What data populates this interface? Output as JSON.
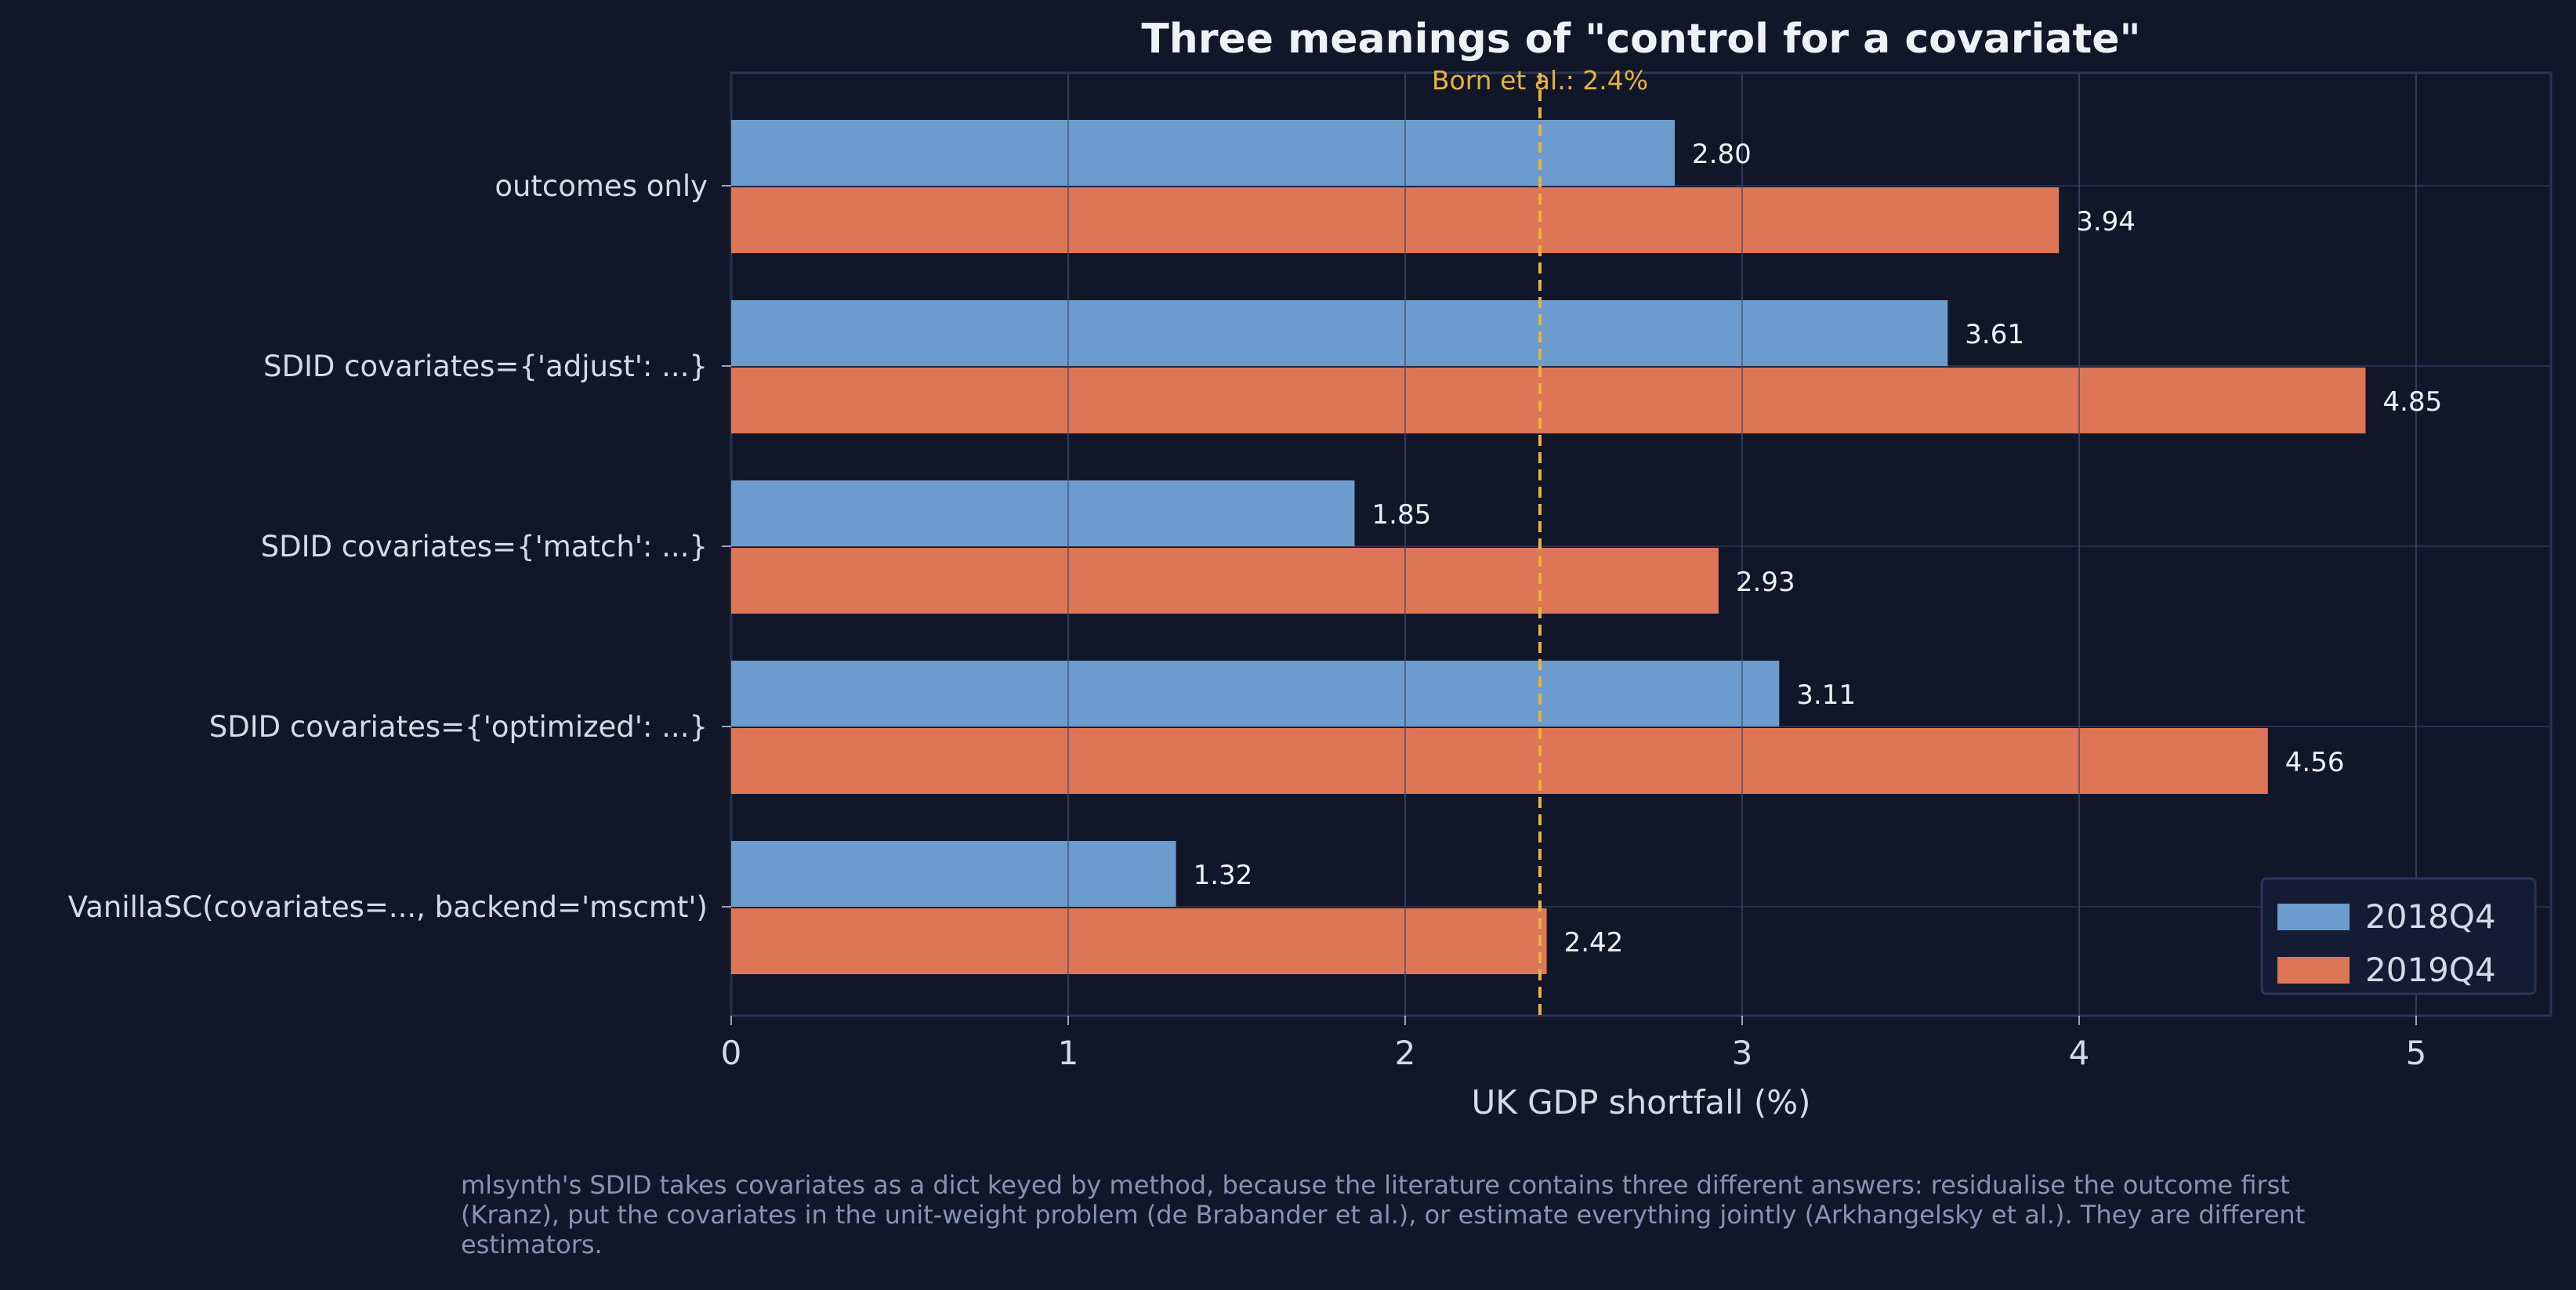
{
  "chart_data": {
    "type": "bar",
    "orientation": "horizontal",
    "title": "Three meanings of \"control for a covariate\"",
    "xlabel": "UK GDP shortfall (%)",
    "ylabel": "",
    "categories": [
      "outcomes only",
      "SDID covariates={'adjust': ...}",
      "SDID covariates={'match': ...}",
      "SDID covariates={'optimized': ...}",
      "VanillaSC(covariates=..., backend='mscmt')"
    ],
    "series": [
      {
        "name": "2018Q4",
        "color": "#6b9ccd",
        "values": [
          2.8,
          3.61,
          1.85,
          3.11,
          1.32
        ]
      },
      {
        "name": "2019Q4",
        "color": "#dc7656",
        "values": [
          3.94,
          4.85,
          2.93,
          4.56,
          2.42
        ]
      }
    ],
    "data_labels": [
      [
        "2.80",
        "3.61",
        "1.85",
        "3.11",
        "1.32"
      ],
      [
        "3.94",
        "4.85",
        "2.93",
        "4.56",
        "2.42"
      ]
    ],
    "xlim": [
      0,
      5.4
    ],
    "xticks": [
      0,
      1,
      2,
      3,
      4,
      5
    ],
    "xtick_labels": [
      "0",
      "1",
      "2",
      "3",
      "4",
      "5"
    ],
    "grid": true,
    "legend": "bottom-right",
    "reference_line": {
      "value": 2.4,
      "label": "Born et al.: 2.4%",
      "color": "#e8b23d",
      "style": "dashed"
    },
    "colors": {
      "background": "#111728",
      "text": "#d5dae6",
      "grid": "#25304f",
      "axis": "#2a3558"
    }
  },
  "caption": "mlsynth's SDID takes covariates as a dict keyed by method, because the literature contains three different answers: residualise the outcome first (Kranz), put the covariates in the unit-weight problem (de Brabander et al.), or estimate everything jointly (Arkhangelsky et al.). They are different estimators."
}
